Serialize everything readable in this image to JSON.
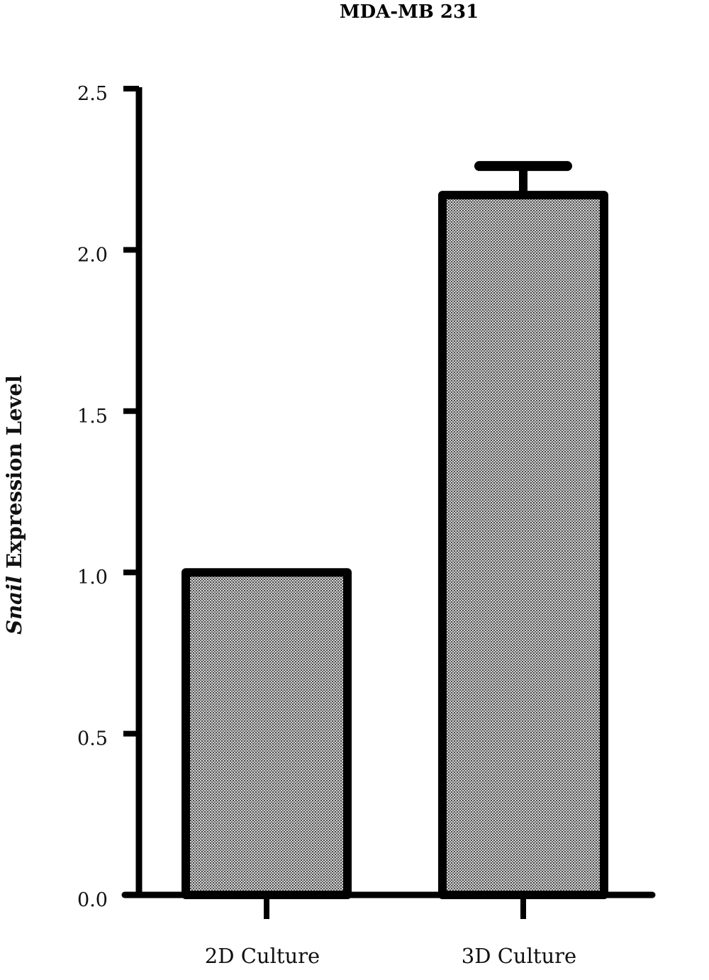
{
  "chart_data": {
    "type": "bar",
    "title": "MDA-MB 231",
    "ylabel_italic": "Snail",
    "ylabel_rest": " Expression Level",
    "xlabel": "",
    "categories": [
      "2D Culture",
      "3D Culture"
    ],
    "values": [
      1.0,
      2.17
    ],
    "error_upper": [
      0,
      0.09
    ],
    "ylim": [
      0,
      2.5
    ],
    "yticks": [
      0.0,
      0.5,
      1.0,
      1.5,
      2.0,
      2.5
    ],
    "ytick_labels": [
      "0.0",
      "0.5",
      "1.0",
      "1.5",
      "2.0",
      "2.5"
    ],
    "grid": false,
    "legend": "none",
    "bar_fill": "dotted gray",
    "colors": {
      "bar_fill": "#b4b4b4",
      "bar_edge": "#000000",
      "axis": "#000000"
    }
  }
}
